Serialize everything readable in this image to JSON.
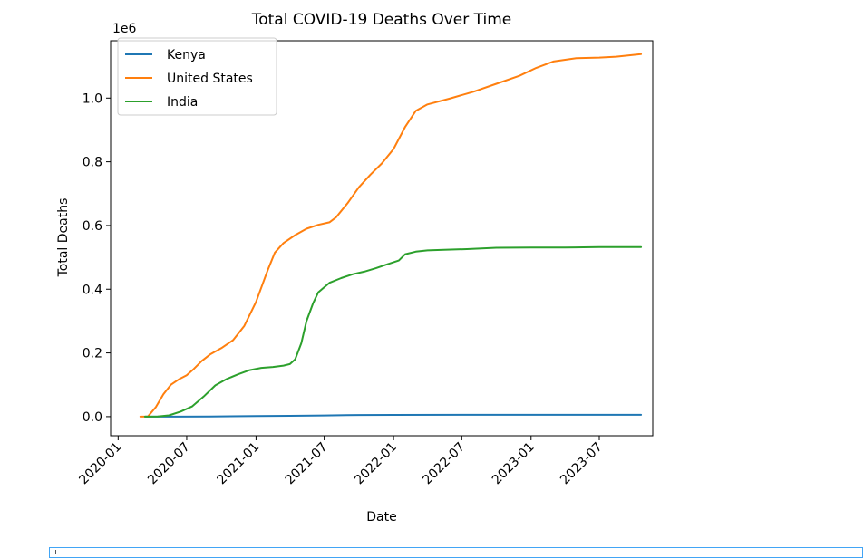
{
  "chart_data": {
    "type": "line",
    "title": "Total COVID-19 Deaths Over Time",
    "xlabel": "Date",
    "ylabel": "Total Deaths",
    "y_scale_label": "1e6",
    "x_ticks": [
      "2020-01",
      "2020-07",
      "2021-01",
      "2021-07",
      "2022-01",
      "2022-07",
      "2023-01",
      "2023-07"
    ],
    "y_ticks": [
      "0.0",
      "0.2",
      "0.4",
      "0.6",
      "0.8",
      "1.0"
    ],
    "xlim": [
      "2019-12-12",
      "2023-11-20"
    ],
    "ylim": [
      -0.06,
      1.18
    ],
    "grid": false,
    "legend_position": "upper-left",
    "series": [
      {
        "name": "Kenya",
        "color": "#1f77b4",
        "points": [
          [
            "2020-03-13",
            0
          ],
          [
            "2020-06-01",
            2e-05
          ],
          [
            "2020-09-01",
            0.0006
          ],
          [
            "2021-01-01",
            0.0017
          ],
          [
            "2021-04-01",
            0.0025
          ],
          [
            "2021-07-01",
            0.0037
          ],
          [
            "2021-10-01",
            0.0052
          ],
          [
            "2022-01-01",
            0.0053
          ],
          [
            "2022-07-01",
            0.0056
          ],
          [
            "2023-01-01",
            0.0057
          ],
          [
            "2023-07-01",
            0.0057
          ],
          [
            "2023-10-20",
            0.0057
          ]
        ]
      },
      {
        "name": "United States",
        "color": "#ff7f0e",
        "points": [
          [
            "2020-02-29",
            0
          ],
          [
            "2020-03-20",
            0.0002
          ],
          [
            "2020-04-10",
            0.03
          ],
          [
            "2020-04-30",
            0.07
          ],
          [
            "2020-05-20",
            0.1
          ],
          [
            "2020-06-10",
            0.117
          ],
          [
            "2020-07-01",
            0.13
          ],
          [
            "2020-07-20",
            0.15
          ],
          [
            "2020-08-10",
            0.175
          ],
          [
            "2020-09-01",
            0.195
          ],
          [
            "2020-10-01",
            0.215
          ],
          [
            "2020-11-01",
            0.24
          ],
          [
            "2020-12-01",
            0.285
          ],
          [
            "2021-01-01",
            0.36
          ],
          [
            "2021-02-01",
            0.46
          ],
          [
            "2021-02-20",
            0.515
          ],
          [
            "2021-03-15",
            0.545
          ],
          [
            "2021-04-15",
            0.57
          ],
          [
            "2021-05-15",
            0.59
          ],
          [
            "2021-06-15",
            0.602
          ],
          [
            "2021-07-15",
            0.61
          ],
          [
            "2021-08-01",
            0.625
          ],
          [
            "2021-09-01",
            0.67
          ],
          [
            "2021-10-01",
            0.72
          ],
          [
            "2021-11-01",
            0.76
          ],
          [
            "2021-12-01",
            0.795
          ],
          [
            "2022-01-01",
            0.84
          ],
          [
            "2022-02-01",
            0.91
          ],
          [
            "2022-03-01",
            0.96
          ],
          [
            "2022-04-01",
            0.98
          ],
          [
            "2022-06-01",
            0.999
          ],
          [
            "2022-08-01",
            1.02
          ],
          [
            "2022-10-01",
            1.045
          ],
          [
            "2022-12-01",
            1.07
          ],
          [
            "2023-01-15",
            1.095
          ],
          [
            "2023-03-01",
            1.115
          ],
          [
            "2023-05-01",
            1.125
          ],
          [
            "2023-07-01",
            1.127
          ],
          [
            "2023-08-15",
            1.13
          ],
          [
            "2023-10-20",
            1.138
          ]
        ]
      },
      {
        "name": "India",
        "color": "#2ca02c",
        "points": [
          [
            "2020-03-12",
            0
          ],
          [
            "2020-04-15",
            0.0004
          ],
          [
            "2020-05-15",
            0.004
          ],
          [
            "2020-06-15",
            0.016
          ],
          [
            "2020-07-15",
            0.032
          ],
          [
            "2020-08-15",
            0.063
          ],
          [
            "2020-09-15",
            0.098
          ],
          [
            "2020-10-15",
            0.118
          ],
          [
            "2020-11-15",
            0.133
          ],
          [
            "2020-12-15",
            0.146
          ],
          [
            "2021-01-15",
            0.153
          ],
          [
            "2021-02-15",
            0.156
          ],
          [
            "2021-03-15",
            0.16
          ],
          [
            "2021-04-01",
            0.165
          ],
          [
            "2021-04-15",
            0.18
          ],
          [
            "2021-05-01",
            0.23
          ],
          [
            "2021-05-15",
            0.3
          ],
          [
            "2021-06-01",
            0.355
          ],
          [
            "2021-06-15",
            0.39
          ],
          [
            "2021-07-15",
            0.42
          ],
          [
            "2021-08-15",
            0.435
          ],
          [
            "2021-09-15",
            0.447
          ],
          [
            "2021-10-15",
            0.455
          ],
          [
            "2021-11-15",
            0.466
          ],
          [
            "2021-12-15",
            0.478
          ],
          [
            "2022-01-15",
            0.49
          ],
          [
            "2022-02-01",
            0.51
          ],
          [
            "2022-03-01",
            0.518
          ],
          [
            "2022-04-01",
            0.522
          ],
          [
            "2022-05-15",
            0.524
          ],
          [
            "2022-07-15",
            0.526
          ],
          [
            "2022-10-01",
            0.53
          ],
          [
            "2023-01-01",
            0.531
          ],
          [
            "2023-04-01",
            0.531
          ],
          [
            "2023-07-01",
            0.532
          ],
          [
            "2023-10-20",
            0.532
          ]
        ]
      }
    ]
  }
}
